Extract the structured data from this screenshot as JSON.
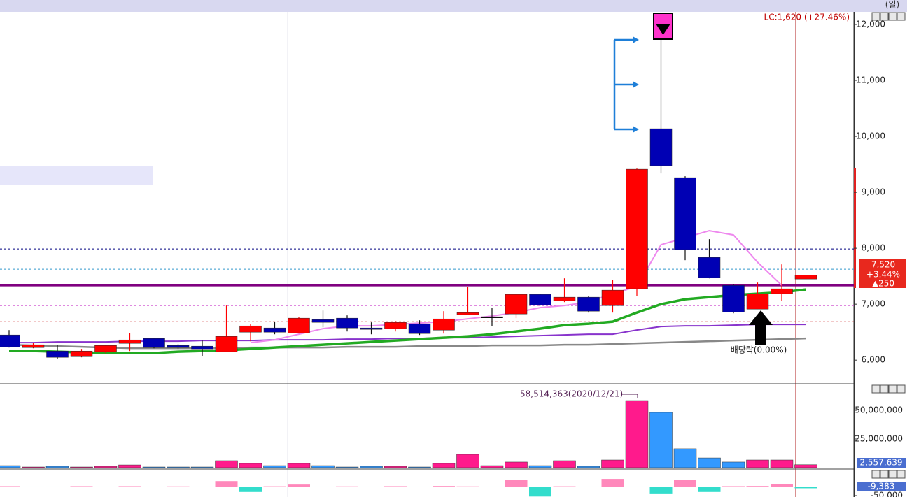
{
  "chart_data": [
    {
      "type": "candlestick",
      "open": [
        6450,
        6225,
        6162,
        6062,
        6150,
        6300,
        6387,
        6262,
        6250,
        6150,
        6500,
        6575,
        6487,
        6725,
        6750,
        6575,
        6562,
        6650,
        6537,
        6812,
        6775,
        6825,
        7175,
        7062,
        7125,
        6975,
        7275,
        10137,
        9262,
        7837,
        7337,
        6912,
        7187,
        7450
      ],
      "high": [
        6537,
        6312,
        6275,
        6200,
        6275,
        6487,
        6400,
        6287,
        6350,
        6975,
        6650,
        6687,
        6775,
        6887,
        6800,
        6675,
        6700,
        6712,
        6875,
        7312,
        6937,
        7187,
        7187,
        7462,
        7150,
        7437,
        9425,
        11725,
        9287,
        8162,
        7362,
        7387,
        7712,
        7525
      ],
      "low": [
        6225,
        6212,
        6025,
        6050,
        6125,
        6162,
        6212,
        6200,
        6075,
        6150,
        6337,
        6462,
        6475,
        6587,
        6512,
        6462,
        6512,
        6450,
        6475,
        6812,
        6612,
        6750,
        6975,
        7037,
        6850,
        6850,
        7150,
        9337,
        7787,
        7462,
        6837,
        6912,
        7062,
        7450
      ],
      "close": [
        6238,
        6275,
        6050,
        6162,
        6262,
        6362,
        6225,
        6225,
        6200,
        6425,
        6612,
        6500,
        6750,
        6675,
        6575,
        6550,
        6675,
        6475,
        6737,
        6850,
        6775,
        7175,
        6987,
        7125,
        6875,
        7250,
        9412,
        9475,
        7975,
        7475,
        6862,
        7187,
        7275,
        7520
      ],
      "up_color": "#ff0000",
      "down_color": "#0000b4",
      "flat_color": "#000000",
      "ylim": [
        5590,
        12225
      ],
      "yticks": [
        {
          "value": 6000,
          "label": "6,000"
        },
        {
          "value": 7000,
          "label": "7,000"
        },
        {
          "value": 8000,
          "label": "8,000"
        },
        {
          "value": 9000,
          "label": "9,000"
        },
        {
          "value": 10000,
          "label": "10,000"
        },
        {
          "value": 11000,
          "label": "11,000"
        },
        {
          "value": 12000,
          "label": "12,000"
        }
      ],
      "lines": [
        {
          "color": "#888888",
          "width": 2.5,
          "values": [
            6275,
            6263,
            6250,
            6238,
            6225,
            6213,
            6213,
            6213,
            6213,
            6213,
            6225,
            6225,
            6225,
            6225,
            6238,
            6238,
            6238,
            6250,
            6250,
            6250,
            6263,
            6263,
            6263,
            6275,
            6275,
            6288,
            6300,
            6313,
            6325,
            6338,
            6350,
            6363,
            6375,
            6388
          ]
        },
        {
          "color": "#8833cc",
          "width": 2,
          "values": [
            6313,
            6313,
            6325,
            6325,
            6325,
            6338,
            6338,
            6338,
            6350,
            6350,
            6350,
            6363,
            6363,
            6363,
            6375,
            6375,
            6388,
            6388,
            6400,
            6400,
            6413,
            6425,
            6438,
            6450,
            6463,
            6463,
            6538,
            6600,
            6613,
            6613,
            6625,
            6638,
            6638,
            6638
          ]
        },
        {
          "color": "#ee88ee",
          "width": 2,
          "values": [
            null,
            null,
            null,
            null,
            null,
            null,
            null,
            null,
            null,
            null,
            6313,
            6363,
            6463,
            6563,
            6613,
            6613,
            6638,
            6663,
            6688,
            6738,
            6788,
            6850,
            6938,
            6975,
            7038,
            7188,
            7313,
            8063,
            8188,
            8313,
            8238,
            7750,
            7338,
            null
          ]
        },
        {
          "color": "#22aa22",
          "width": 3.5,
          "values": [
            6163,
            6163,
            6150,
            6138,
            6125,
            6125,
            6125,
            6150,
            6163,
            6175,
            6200,
            6225,
            6250,
            6275,
            6300,
            6325,
            6350,
            6375,
            6400,
            6425,
            6463,
            6513,
            6563,
            6625,
            6650,
            6688,
            6850,
            7000,
            7088,
            7125,
            7163,
            7188,
            7213,
            7263
          ]
        }
      ],
      "hlines": [
        {
          "value": 7987,
          "color": "#000080",
          "style": "dashed"
        },
        {
          "value": 7625,
          "color": "#3399cc",
          "style": "dashed"
        },
        {
          "value": 6975,
          "color": "#cc44cc",
          "style": "dashed"
        },
        {
          "value": 6687,
          "color": "#cc2222",
          "style": "dashed"
        },
        {
          "value": 7337,
          "color": "#800080",
          "style": "solid"
        }
      ],
      "period_label": "(일)",
      "last_close_label": "LC:1,620 (+27.46%)",
      "current": {
        "label": "7,520",
        "change": "+3.44%",
        "diff": "▲250"
      },
      "annotation": "배당락(0.00%)"
    },
    {
      "type": "bar",
      "values": [
        1800000,
        600000,
        1200000,
        600000,
        1200000,
        2400000,
        600000,
        600000,
        600000,
        6100000,
        3700000,
        1800000,
        3700000,
        1800000,
        600000,
        1200000,
        1200000,
        600000,
        3700000,
        11600000,
        1800000,
        4900000,
        1800000,
        6100000,
        1200000,
        6700000,
        58514363,
        48200000,
        16500000,
        8500000,
        4900000,
        6700000,
        6700000,
        2557639
      ],
      "up_color": "#ff1a8c",
      "down_color": "#3399ff",
      "ylim": [
        0,
        72560000
      ],
      "yticks": [
        {
          "value": 25000000,
          "label": "25,000,000"
        },
        {
          "value": 50000000,
          "label": "50,000,000"
        }
      ],
      "annotation": "58,514,363(2020/12/21)",
      "current_label": "2,557,639"
    },
    {
      "type": "bar",
      "values": [
        2000,
        -1000,
        -2000,
        2000,
        -1000,
        2000,
        -1000,
        1000,
        -1000,
        30000,
        -30000,
        1500,
        11000,
        -2000,
        1000,
        -1500,
        2000,
        -1000,
        3000,
        1000,
        -2000,
        38000,
        -55000,
        1500,
        -2000,
        42000,
        -1500,
        -38000,
        38000,
        -30000,
        2000,
        3000,
        15000,
        -9383
      ],
      "up_color": "#ff88bb",
      "down_color": "#33ddcc",
      "ylim": [
        -57700,
        92300
      ],
      "yticks": [
        {
          "value": -50000,
          "label": "-50,000"
        }
      ],
      "current_label": "-9,383"
    }
  ]
}
